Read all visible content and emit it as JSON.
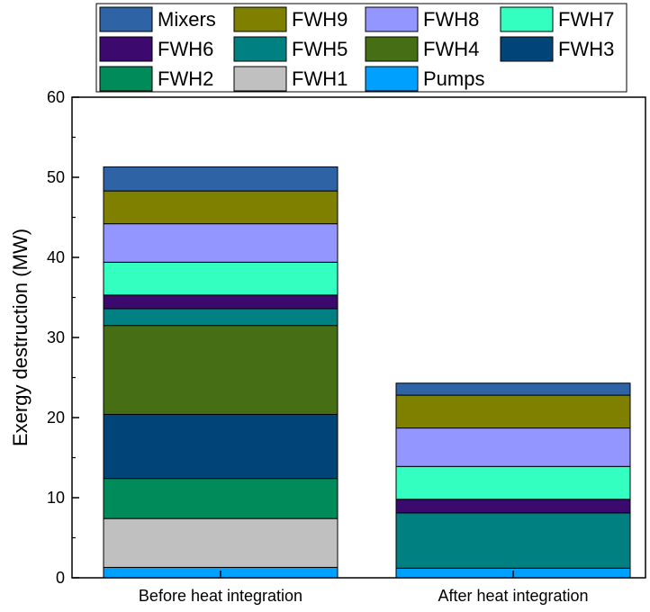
{
  "chart_data": {
    "type": "bar",
    "stacked": true,
    "title": "",
    "xlabel": "",
    "ylabel": "Exergy destruction (MW)",
    "ylim": [
      0,
      60
    ],
    "yticks": [
      0,
      10,
      20,
      30,
      40,
      50,
      60
    ],
    "grid": false,
    "legend_position": "top",
    "categories": [
      "Before heat integration",
      "After heat integration"
    ],
    "series": [
      {
        "name": "Pumps",
        "color": "#00A0FF",
        "values": [
          1.3,
          1.2
        ]
      },
      {
        "name": "FWH1",
        "color": "#C0C0C0",
        "values": [
          6.1,
          0.0
        ]
      },
      {
        "name": "FWH2",
        "color": "#008C5A",
        "values": [
          5.0,
          0.0
        ]
      },
      {
        "name": "FWH3",
        "color": "#004478",
        "values": [
          8.0,
          0.0
        ]
      },
      {
        "name": "FWH4",
        "color": "#466E14",
        "values": [
          11.1,
          0.0
        ]
      },
      {
        "name": "FWH5",
        "color": "#008080",
        "values": [
          2.1,
          6.9
        ]
      },
      {
        "name": "FWH6",
        "color": "#3C0A6E",
        "values": [
          1.7,
          1.7
        ]
      },
      {
        "name": "FWH7",
        "color": "#32FFC0",
        "values": [
          4.1,
          4.1
        ]
      },
      {
        "name": "FWH8",
        "color": "#9496FF",
        "values": [
          4.8,
          4.8
        ]
      },
      {
        "name": "FWH9",
        "color": "#808000",
        "values": [
          4.1,
          4.1
        ]
      },
      {
        "name": "Mixers",
        "color": "#2E63A6",
        "values": [
          3.0,
          1.5
        ]
      }
    ],
    "legend_order": [
      "Mixers",
      "FWH9",
      "FWH8",
      "FWH7",
      "FWH6",
      "FWH5",
      "FWH4",
      "FWH3",
      "FWH2",
      "FWH1",
      "Pumps"
    ]
  }
}
